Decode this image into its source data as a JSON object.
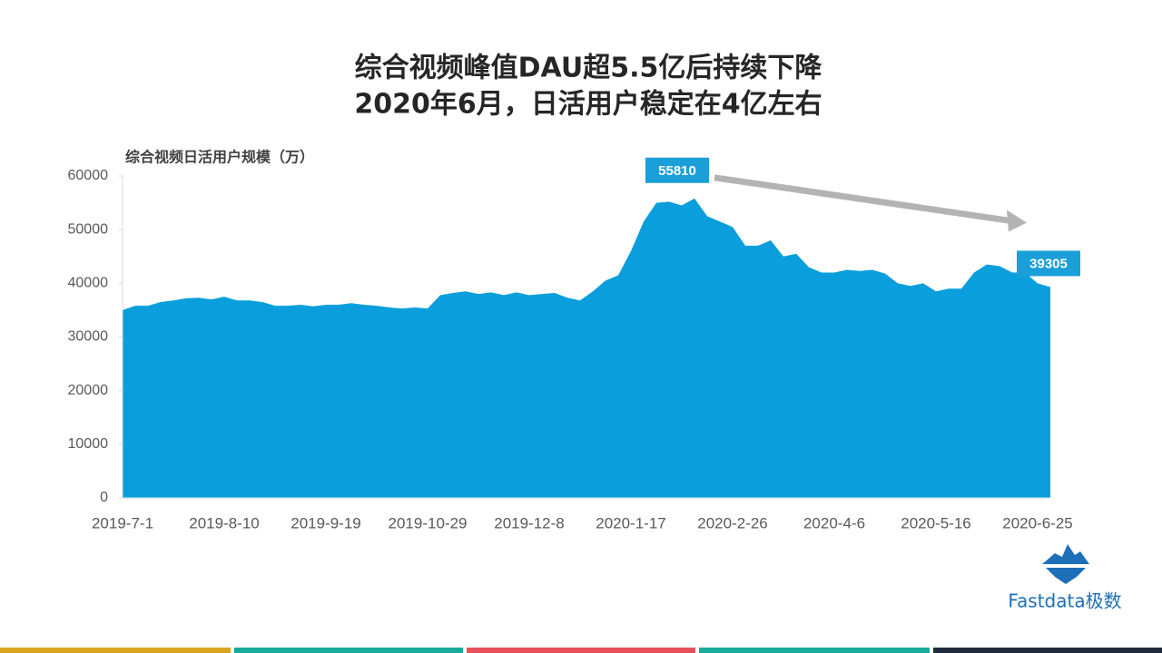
{
  "chart_data": {
    "type": "area",
    "title": [
      "综合视频峰值DAU超5.5亿后持续下降",
      "2020年6月，日活用户稳定在4亿左右"
    ],
    "y_label": "综合视频日活用户规模（万）",
    "color": "#0a9fdc",
    "categories": [
      "2019-7-1",
      null,
      null,
      null,
      null,
      null,
      null,
      null,
      "2019-8-10",
      null,
      null,
      null,
      null,
      null,
      null,
      null,
      "2019-9-19",
      null,
      null,
      null,
      null,
      null,
      null,
      null,
      "2019-10-29",
      null,
      null,
      null,
      null,
      null,
      null,
      null,
      "2019-12-8",
      null,
      null,
      null,
      null,
      null,
      null,
      null,
      "2020-1-17",
      null,
      null,
      null,
      null,
      null,
      null,
      null,
      "2020-2-26",
      null,
      null,
      null,
      null,
      null,
      null,
      null,
      "2020-4-6",
      null,
      null,
      null,
      null,
      null,
      null,
      null,
      "2020-5-16",
      null,
      null,
      null,
      null,
      null,
      null,
      null,
      "2020-6-25",
      null
    ],
    "values": [
      35000,
      35800,
      35800,
      36500,
      36800,
      37200,
      37300,
      37000,
      37500,
      36800,
      36800,
      36500,
      35800,
      35800,
      36000,
      35700,
      36000,
      36000,
      36300,
      36000,
      35800,
      35500,
      35300,
      35500,
      35300,
      37800,
      38200,
      38500,
      38000,
      38300,
      37800,
      38300,
      37800,
      38000,
      38200,
      37300,
      36800,
      38500,
      40500,
      41500,
      46000,
      51500,
      55000,
      55200,
      54500,
      55810,
      52500,
      51500,
      50500,
      47000,
      47000,
      48000,
      45000,
      45500,
      43000,
      42000,
      42000,
      42500,
      42300,
      42500,
      41800,
      40000,
      39500,
      40000,
      38500,
      39000,
      39000,
      42000,
      43500,
      43200,
      42000,
      42000,
      40000,
      39305
    ],
    "ylim": [
      0,
      60000
    ],
    "yticks": [
      0,
      10000,
      20000,
      30000,
      40000,
      50000,
      60000
    ],
    "grid": false
  },
  "logo": "Fastdata极数"
}
